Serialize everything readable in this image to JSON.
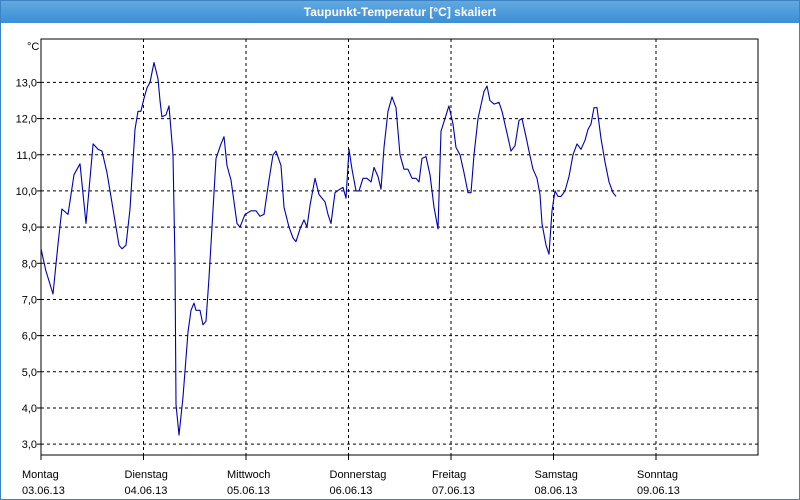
{
  "window": {
    "title": "Taupunkt-Temperatur [°C] skaliert"
  },
  "chart_data": {
    "type": "line",
    "title": "Taupunkt-Temperatur [°C] skaliert",
    "ylabel": "°C",
    "ylim": [
      2.7,
      14.2
    ],
    "xlim": [
      0,
      7
    ],
    "yticks": [
      3.0,
      4.0,
      5.0,
      6.0,
      7.0,
      8.0,
      9.0,
      10.0,
      11.0,
      12.0,
      13.0
    ],
    "ytick_labels": [
      "3,0",
      "4,0",
      "5,0",
      "6,0",
      "7,0",
      "8,0",
      "9,0",
      "10,0",
      "11,0",
      "12,0",
      "13,0"
    ],
    "x_categories": [
      {
        "day": "Montag",
        "date": "03.06.13"
      },
      {
        "day": "Dienstag",
        "date": "04.06.13"
      },
      {
        "day": "Mittwoch",
        "date": "05.06.13"
      },
      {
        "day": "Donnerstag",
        "date": "06.06.13"
      },
      {
        "day": "Freitag",
        "date": "07.06.13"
      },
      {
        "day": "Samstag",
        "date": "08.06.13"
      },
      {
        "day": "Sonntag",
        "date": "09.06.13"
      }
    ],
    "grid": true,
    "series": [
      {
        "color": "#0000b0",
        "points": [
          [
            0.0,
            8.4
          ],
          [
            0.047,
            7.8
          ],
          [
            0.117,
            7.15
          ],
          [
            0.165,
            8.5
          ],
          [
            0.204,
            9.5
          ],
          [
            0.263,
            9.35
          ],
          [
            0.322,
            10.45
          ],
          [
            0.38,
            10.75
          ],
          [
            0.439,
            9.1
          ],
          [
            0.508,
            11.3
          ],
          [
            0.556,
            11.15
          ],
          [
            0.595,
            11.1
          ],
          [
            0.644,
            10.5
          ],
          [
            0.702,
            9.5
          ],
          [
            0.761,
            8.5
          ],
          [
            0.79,
            8.4
          ],
          [
            0.829,
            8.5
          ],
          [
            0.868,
            9.5
          ],
          [
            0.917,
            11.7
          ],
          [
            0.946,
            12.2
          ],
          [
            0.975,
            12.2
          ],
          [
            1.004,
            12.55
          ],
          [
            1.034,
            12.85
          ],
          [
            1.063,
            13.0
          ],
          [
            1.102,
            13.55
          ],
          [
            1.141,
            13.1
          ],
          [
            1.161,
            12.5
          ],
          [
            1.18,
            12.05
          ],
          [
            1.219,
            12.1
          ],
          [
            1.249,
            12.35
          ],
          [
            1.288,
            11.0
          ],
          [
            1.307,
            8.0
          ],
          [
            1.317,
            4.1
          ],
          [
            1.346,
            3.25
          ],
          [
            1.385,
            4.3
          ],
          [
            1.434,
            6.1
          ],
          [
            1.463,
            6.7
          ],
          [
            1.493,
            6.9
          ],
          [
            1.512,
            6.7
          ],
          [
            1.551,
            6.7
          ],
          [
            1.58,
            6.3
          ],
          [
            1.61,
            6.4
          ],
          [
            1.639,
            7.6
          ],
          [
            1.668,
            9.0
          ],
          [
            1.707,
            10.9
          ],
          [
            1.756,
            11.3
          ],
          [
            1.785,
            11.5
          ],
          [
            1.815,
            10.7
          ],
          [
            1.854,
            10.3
          ],
          [
            1.912,
            9.1
          ],
          [
            1.941,
            9.0
          ],
          [
            1.99,
            9.35
          ],
          [
            2.049,
            9.45
          ],
          [
            2.098,
            9.45
          ],
          [
            2.137,
            9.3
          ],
          [
            2.176,
            9.35
          ],
          [
            2.224,
            10.3
          ],
          [
            2.263,
            11.0
          ],
          [
            2.293,
            11.1
          ],
          [
            2.341,
            10.7
          ],
          [
            2.371,
            9.55
          ],
          [
            2.42,
            9.0
          ],
          [
            2.459,
            8.7
          ],
          [
            2.488,
            8.6
          ],
          [
            2.527,
            8.95
          ],
          [
            2.566,
            9.2
          ],
          [
            2.595,
            9.0
          ],
          [
            2.624,
            9.6
          ],
          [
            2.673,
            10.35
          ],
          [
            2.712,
            9.9
          ],
          [
            2.771,
            9.7
          ],
          [
            2.8,
            9.35
          ],
          [
            2.829,
            9.1
          ],
          [
            2.868,
            9.95
          ],
          [
            2.917,
            10.05
          ],
          [
            2.946,
            10.1
          ],
          [
            2.976,
            9.8
          ],
          [
            3.005,
            11.15
          ],
          [
            3.034,
            10.6
          ],
          [
            3.073,
            10.0
          ],
          [
            3.102,
            10.0
          ],
          [
            3.141,
            10.35
          ],
          [
            3.18,
            10.35
          ],
          [
            3.22,
            10.25
          ],
          [
            3.249,
            10.65
          ],
          [
            3.288,
            10.4
          ],
          [
            3.317,
            10.05
          ],
          [
            3.346,
            11.2
          ],
          [
            3.385,
            12.2
          ],
          [
            3.424,
            12.6
          ],
          [
            3.463,
            12.3
          ],
          [
            3.502,
            11.0
          ],
          [
            3.541,
            10.6
          ],
          [
            3.58,
            10.6
          ],
          [
            3.62,
            10.35
          ],
          [
            3.659,
            10.35
          ],
          [
            3.688,
            10.25
          ],
          [
            3.717,
            10.9
          ],
          [
            3.756,
            10.95
          ],
          [
            3.795,
            10.45
          ],
          [
            3.834,
            9.55
          ],
          [
            3.873,
            8.95
          ],
          [
            3.902,
            11.65
          ],
          [
            3.941,
            12.0
          ],
          [
            3.98,
            12.35
          ],
          [
            4.02,
            11.85
          ],
          [
            4.049,
            11.2
          ],
          [
            4.088,
            11.0
          ],
          [
            4.127,
            10.5
          ],
          [
            4.166,
            9.95
          ],
          [
            4.195,
            9.95
          ],
          [
            4.224,
            11.0
          ],
          [
            4.263,
            12.0
          ],
          [
            4.322,
            12.75
          ],
          [
            4.351,
            12.9
          ],
          [
            4.38,
            12.5
          ],
          [
            4.42,
            12.4
          ],
          [
            4.468,
            12.45
          ],
          [
            4.498,
            12.2
          ],
          [
            4.546,
            11.6
          ],
          [
            4.585,
            11.1
          ],
          [
            4.624,
            11.25
          ],
          [
            4.663,
            11.95
          ],
          [
            4.693,
            12.0
          ],
          [
            4.732,
            11.5
          ],
          [
            4.761,
            11.1
          ],
          [
            4.8,
            10.6
          ],
          [
            4.839,
            10.35
          ],
          [
            4.868,
            9.9
          ],
          [
            4.888,
            9.1
          ],
          [
            4.927,
            8.5
          ],
          [
            4.956,
            8.25
          ],
          [
            4.985,
            9.45
          ],
          [
            5.015,
            10.0
          ],
          [
            5.044,
            9.85
          ],
          [
            5.073,
            9.85
          ],
          [
            5.112,
            10.0
          ],
          [
            5.151,
            10.4
          ],
          [
            5.19,
            11.0
          ],
          [
            5.229,
            11.3
          ],
          [
            5.268,
            11.15
          ],
          [
            5.307,
            11.4
          ],
          [
            5.337,
            11.7
          ],
          [
            5.366,
            11.85
          ],
          [
            5.395,
            12.3
          ],
          [
            5.424,
            12.3
          ],
          [
            5.463,
            11.45
          ],
          [
            5.502,
            10.8
          ],
          [
            5.541,
            10.25
          ],
          [
            5.58,
            9.95
          ],
          [
            5.61,
            9.85
          ]
        ]
      }
    ]
  }
}
